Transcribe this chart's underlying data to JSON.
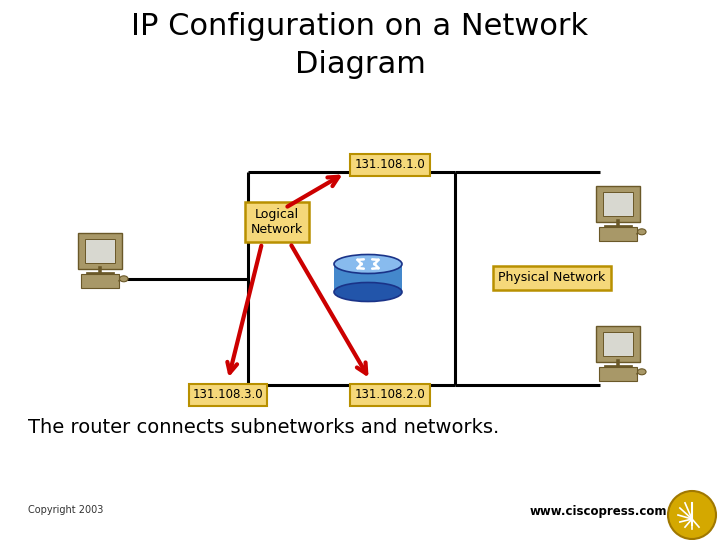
{
  "title_line1": "IP Configuration on a Network",
  "title_line2": "Diagram",
  "subtitle": "The router connects subnetworks and networks.",
  "copyright": "Copyright 2003",
  "website": "www.ciscopress.com",
  "bg_color": "#ffffff",
  "title_fontsize": 22,
  "subtitle_fontsize": 14,
  "label_1": "131.108.1.0",
  "label_2": "131.108.2.0",
  "label_3": "131.108.3.0",
  "label_logical": "Logical\nNetwork",
  "label_physical": "Physical Network",
  "box_fill": "#f5d87a",
  "box_edge": "#b89000",
  "line_color": "#000000",
  "arrow_color": "#cc0000",
  "router_blue": "#4488cc",
  "router_light": "#88bbee",
  "router_dark": "#2255aa",
  "pc_body": "#a89868",
  "pc_screen": "#d8d8d0",
  "pc_dark": "#6a5828",
  "logo_gold": "#d4a800"
}
